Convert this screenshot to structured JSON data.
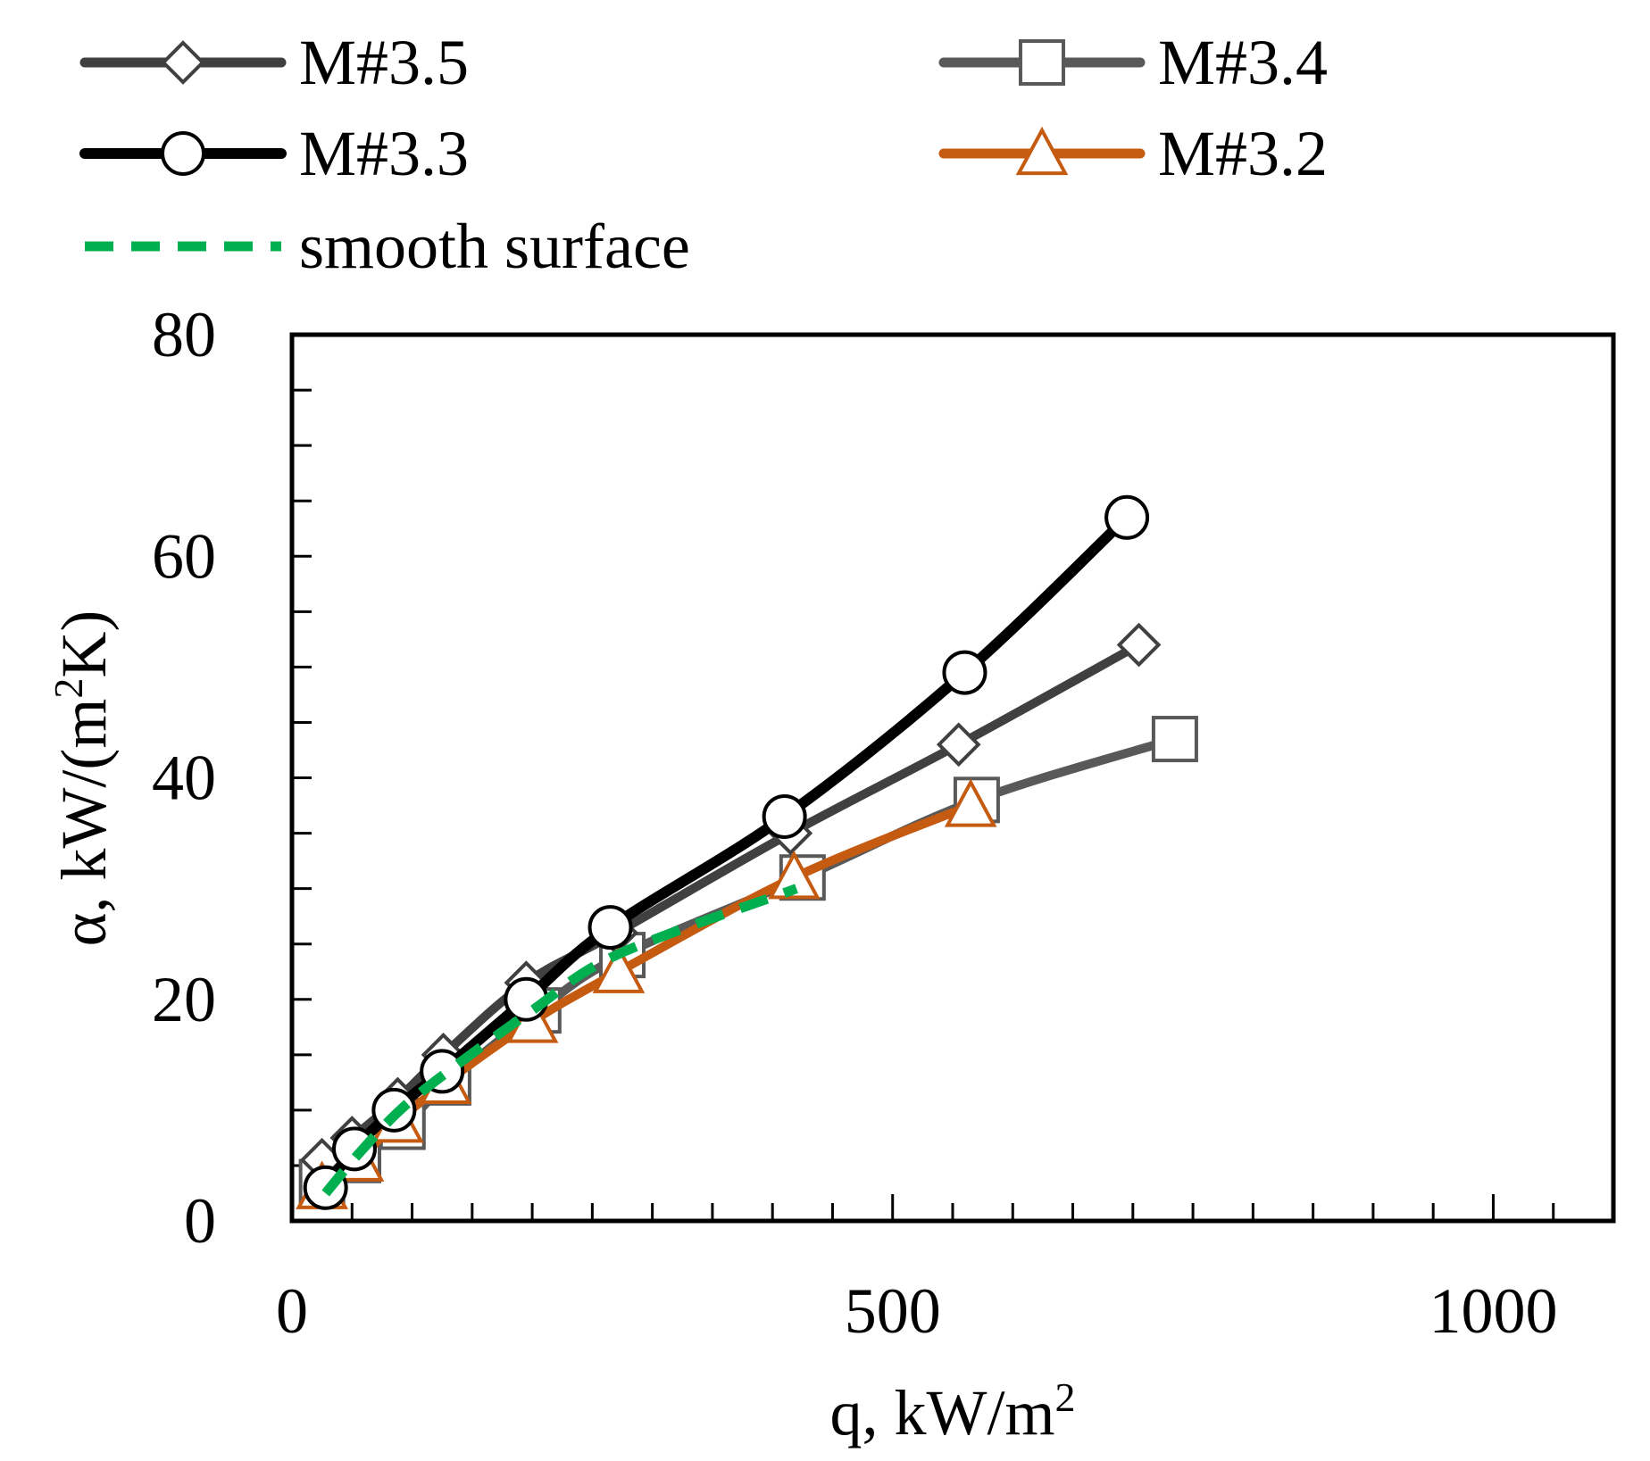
{
  "chart_data": {
    "type": "line",
    "title": "",
    "xlabel": "q, kW/m",
    "xlabel_sup": "2",
    "ylabel_pre": "α, kW/(m",
    "ylabel_sup": "2",
    "ylabel_post": "K)",
    "xlim": [
      0,
      1100
    ],
    "ylim": [
      0,
      80
    ],
    "x_major_ticks": [
      0,
      500,
      1000
    ],
    "x_minor_step": 50,
    "y_major_ticks": [
      0,
      20,
      40,
      60,
      80
    ],
    "y_minor_step": 5,
    "legend_position": "top",
    "series": [
      {
        "name": "M#3.5",
        "marker": "diamond",
        "color": "#404040",
        "dashed": false,
        "x": [
          25,
          50,
          88,
          126,
          195,
          270,
          415,
          555,
          705
        ],
        "y": [
          5.5,
          7.5,
          11,
          15,
          21.5,
          26,
          35,
          43,
          52
        ]
      },
      {
        "name": "M#3.4",
        "marker": "square",
        "color": "#595959",
        "dashed": false,
        "x": [
          25,
          55,
          92,
          130,
          205,
          275,
          425,
          570,
          735
        ],
        "y": [
          3.5,
          5.5,
          8.5,
          12.5,
          19,
          24,
          31,
          38,
          43.5
        ]
      },
      {
        "name": "M#3.3",
        "marker": "circle",
        "color": "#000000",
        "dashed": false,
        "x": [
          28,
          52,
          85,
          125,
          195,
          265,
          410,
          560,
          695
        ],
        "y": [
          3,
          6.5,
          10,
          13.5,
          20,
          26.5,
          36.5,
          49.5,
          63.5
        ]
      },
      {
        "name": "M#3.2",
        "marker": "triangle",
        "color": "#C55A11",
        "dashed": false,
        "x": [
          25,
          55,
          88,
          128,
          200,
          272,
          418,
          565
        ],
        "y": [
          3,
          5.5,
          9,
          12.5,
          18,
          22.5,
          31,
          37.5
        ]
      },
      {
        "name": "smooth surface",
        "marker": "none",
        "color": "#00B050",
        "dashed": true,
        "x": [
          28,
          55,
          90,
          130,
          200,
          270,
          420
        ],
        "y": [
          2.5,
          6,
          10,
          13.5,
          19,
          24,
          30
        ]
      }
    ]
  }
}
